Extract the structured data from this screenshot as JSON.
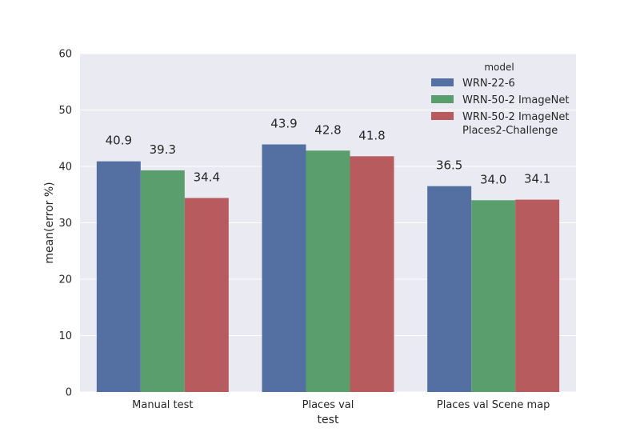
{
  "chart_data": {
    "type": "bar",
    "categories": [
      "Manual test",
      "Places val",
      "Places val Scene map"
    ],
    "series": [
      {
        "name": "WRN-22-6",
        "values": [
          40.9,
          43.9,
          36.5
        ],
        "labels": [
          "40.9",
          "43.9",
          "36.5"
        ],
        "color": "#5470a3"
      },
      {
        "name": "WRN-50-2 ImageNet",
        "values": [
          39.3,
          42.8,
          34.0
        ],
        "labels": [
          "39.3",
          "42.8",
          "34.0"
        ],
        "color": "#5b9e6d"
      },
      {
        "name": "WRN-50-2 ImageNet Places2-Challenge",
        "name_lines": [
          "WRN-50-2 ImageNet",
          "Places2-Challenge"
        ],
        "values": [
          34.4,
          41.8,
          34.1
        ],
        "labels": [
          "34.4",
          "41.8",
          "34.1"
        ],
        "color": "#b85b5e"
      }
    ],
    "xlabel": "test",
    "ylabel": "mean(error %)",
    "ylim": [
      0,
      60
    ],
    "yticks": [
      0,
      10,
      20,
      30,
      40,
      50,
      60
    ],
    "ytick_labels": [
      "0",
      "10",
      "20",
      "30",
      "40",
      "50",
      "60"
    ],
    "legend_title": "model",
    "legend_position": "top-right",
    "grid": true,
    "background_color": "#eaeaf2",
    "grid_color": "#ffffff"
  }
}
